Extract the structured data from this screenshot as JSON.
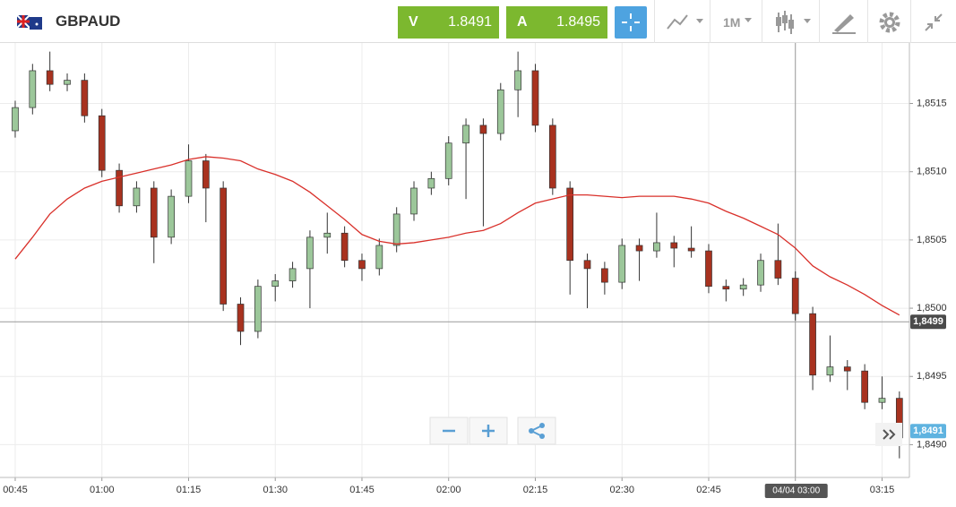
{
  "header": {
    "symbol": "GBPAUD",
    "sell": {
      "label": "V",
      "price": "1.8491"
    },
    "buy": {
      "label": "A",
      "price": "1.8495"
    },
    "timeframe": "1M"
  },
  "chart_data": {
    "type": "candlestick",
    "categories": [
      "00:45",
      null,
      null,
      null,
      null,
      "01:00",
      null,
      null,
      null,
      null,
      "01:15",
      null,
      null,
      null,
      null,
      "01:30",
      null,
      null,
      null,
      null,
      "01:45",
      null,
      null,
      null,
      null,
      "02:00",
      null,
      null,
      null,
      null,
      "02:15",
      null,
      null,
      null,
      null,
      "02:30",
      null,
      null,
      null,
      null,
      "02:45",
      null,
      null,
      null,
      null,
      "03:00",
      null,
      null,
      null,
      null,
      "03:15",
      null
    ],
    "open": [
      1.8513,
      1.85147,
      1.85174,
      1.85164,
      1.85167,
      1.85141,
      1.85101,
      1.85075,
      1.85088,
      1.85052,
      1.85082,
      1.85108,
      1.85088,
      1.85003,
      1.84983,
      1.85016,
      1.8502,
      1.85029,
      1.85052,
      1.85055,
      1.85035,
      1.85029,
      1.85046,
      1.85069,
      1.85088,
      1.85095,
      1.85121,
      1.85134,
      1.85128,
      1.8516,
      1.85174,
      1.85134,
      1.85088,
      1.85035,
      1.85029,
      1.85019,
      1.85046,
      1.85042,
      1.85048,
      1.85044,
      1.85042,
      1.85016,
      1.85014,
      1.85017,
      1.85035,
      1.85022,
      1.84996,
      1.84951,
      1.84957,
      1.84954,
      1.84931,
      1.84934
    ],
    "high": [
      1.85152,
      1.85179,
      1.85188,
      1.85172,
      1.85172,
      1.85146,
      1.85106,
      1.85093,
      1.85093,
      1.85087,
      1.8512,
      1.85113,
      1.85093,
      1.85008,
      1.85021,
      1.85025,
      1.85034,
      1.85057,
      1.8507,
      1.8506,
      1.8504,
      1.85051,
      1.85074,
      1.85093,
      1.851,
      1.85126,
      1.85139,
      1.85139,
      1.85165,
      1.85188,
      1.85179,
      1.85139,
      1.85093,
      1.8504,
      1.85034,
      1.85051,
      1.85051,
      1.8507,
      1.85053,
      1.8506,
      1.85047,
      1.85021,
      1.85022,
      1.8504,
      1.85062,
      1.85027,
      1.85001,
      1.8498,
      1.84962,
      1.84959,
      1.8495,
      1.84939
    ],
    "low": [
      1.85125,
      1.85142,
      1.85159,
      1.85159,
      1.85136,
      1.85096,
      1.8507,
      1.8507,
      1.85033,
      1.85047,
      1.85077,
      1.85063,
      1.84998,
      1.84973,
      1.84978,
      1.85005,
      1.85015,
      1.85,
      1.8504,
      1.8503,
      1.8502,
      1.85024,
      1.85041,
      1.85064,
      1.85083,
      1.8509,
      1.8508,
      1.8506,
      1.85123,
      1.8514,
      1.85129,
      1.85083,
      1.8501,
      1.85,
      1.8501,
      1.85014,
      1.8502,
      1.85037,
      1.8503,
      1.85037,
      1.85011,
      1.85005,
      1.85009,
      1.85012,
      1.85017,
      1.84991,
      1.8494,
      1.84946,
      1.8494,
      1.84926,
      1.84926,
      1.8489
    ],
    "close": [
      1.85147,
      1.85174,
      1.85164,
      1.85167,
      1.85141,
      1.85101,
      1.85075,
      1.85088,
      1.85052,
      1.85082,
      1.85108,
      1.85088,
      1.85003,
      1.84983,
      1.85016,
      1.8502,
      1.85029,
      1.85052,
      1.85055,
      1.85035,
      1.85029,
      1.85046,
      1.85069,
      1.85088,
      1.85095,
      1.85121,
      1.85134,
      1.85128,
      1.8516,
      1.85174,
      1.85134,
      1.85088,
      1.85035,
      1.85029,
      1.85019,
      1.85046,
      1.85042,
      1.85048,
      1.85044,
      1.85042,
      1.85016,
      1.85014,
      1.85017,
      1.85035,
      1.85022,
      1.84996,
      1.84951,
      1.84957,
      1.84954,
      1.84931,
      1.84934,
      1.84905
    ],
    "up_color": "#9cc79a",
    "down_color": "#a8321f",
    "moving_average": {
      "color": "#d9302a",
      "values": [
        1.85036,
        1.85052,
        1.85069,
        1.8508,
        1.85088,
        1.85093,
        1.85096,
        1.85099,
        1.85102,
        1.85105,
        1.85109,
        1.85111,
        1.8511,
        1.85108,
        1.85102,
        1.85098,
        1.85093,
        1.85085,
        1.85075,
        1.85065,
        1.85054,
        1.85049,
        1.85047,
        1.85048,
        1.8505,
        1.85052,
        1.85055,
        1.85057,
        1.85062,
        1.8507,
        1.85077,
        1.8508,
        1.85083,
        1.85083,
        1.85082,
        1.85081,
        1.85082,
        1.85082,
        1.85082,
        1.8508,
        1.85077,
        1.85071,
        1.85066,
        1.8506,
        1.85054,
        1.85044,
        1.85031,
        1.85023,
        1.85017,
        1.8501,
        1.85002,
        1.84995
      ]
    },
    "ylim": [
      1.84876,
      1.85193
    ],
    "yticks": [
      {
        "value": 1.849,
        "label": "1,8490"
      },
      {
        "value": 1.8495,
        "label": "1,8495"
      },
      {
        "value": 1.85,
        "label": "1,8500"
      },
      {
        "value": 1.8505,
        "label": "1,8505"
      },
      {
        "value": 1.851,
        "label": "1,8510"
      },
      {
        "value": 1.8515,
        "label": "1,8515"
      }
    ],
    "grid": true,
    "last_price": {
      "value": 1.8499,
      "label": "1,8499"
    },
    "current_price": {
      "value": 1.8491,
      "label": "1,8491"
    },
    "crosshair_label": "04/04 03:00"
  }
}
